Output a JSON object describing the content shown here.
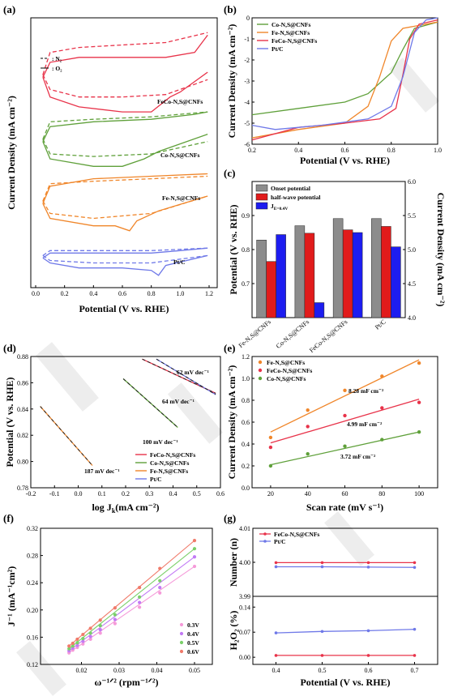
{
  "panels": {
    "a": "(a)",
    "b": "(b)",
    "c": "(c)",
    "d": "(d)",
    "e": "(e)",
    "f": "(f)",
    "g": "(g)"
  },
  "chart_data": [
    {
      "id": "a",
      "type": "line",
      "title": "",
      "xlabel": "Potential (V vs. RHE)",
      "ylabel": "Current Density (mA cm⁻²)",
      "xlim": [
        0,
        1.2
      ],
      "xticks": [
        "0.0",
        "0.2",
        "0.4",
        "0.6",
        "0.8",
        "1.0",
        "1.2"
      ],
      "legend": [
        {
          "style": "dashed",
          "label": ": N₂"
        },
        {
          "style": "solid",
          "label": ": O₂"
        }
      ],
      "curve_labels": [
        "FeCo-N,S@CNFs",
        "Co-N,S@CNFs",
        "Fe-N,S@CNFs",
        "Pt/C"
      ],
      "colors": [
        "#e8334a",
        "#5fa03a",
        "#f0862a",
        "#6f79e8"
      ],
      "note": "Cyclic voltammograms, y axis without tick values",
      "cvs": [
        {
          "name": "FeCo-N,S@CNFs",
          "upper_solid": [
            [
              0.05,
              0.78
            ],
            [
              0.1,
              0.84
            ],
            [
              0.3,
              0.86
            ],
            [
              0.6,
              0.86
            ],
            [
              0.9,
              0.86
            ],
            [
              1.1,
              0.88
            ],
            [
              1.19,
              0.95
            ]
          ],
          "lower_solid": [
            [
              0.05,
              0.78
            ],
            [
              0.1,
              0.7
            ],
            [
              0.3,
              0.66
            ],
            [
              0.6,
              0.64
            ],
            [
              0.8,
              0.64
            ],
            [
              0.93,
              0.7
            ],
            [
              1.0,
              0.72
            ],
            [
              1.19,
              0.8
            ]
          ],
          "upper_dash": [
            [
              0.05,
              0.79
            ],
            [
              0.1,
              0.88
            ],
            [
              0.3,
              0.9
            ],
            [
              0.6,
              0.91
            ],
            [
              0.9,
              0.92
            ],
            [
              1.19,
              0.96
            ]
          ],
          "lower_dash": [
            [
              0.05,
              0.79
            ],
            [
              0.1,
              0.73
            ],
            [
              0.3,
              0.7
            ],
            [
              0.6,
              0.7
            ],
            [
              0.9,
              0.71
            ],
            [
              1.19,
              0.77
            ]
          ]
        },
        {
          "name": "Co-N,S@CNFs",
          "upper_solid": [
            [
              0.05,
              0.52
            ],
            [
              0.1,
              0.58
            ],
            [
              0.4,
              0.6
            ],
            [
              0.8,
              0.61
            ],
            [
              1.1,
              0.63
            ],
            [
              1.19,
              0.64
            ]
          ],
          "lower_solid": [
            [
              0.05,
              0.52
            ],
            [
              0.1,
              0.45
            ],
            [
              0.4,
              0.42
            ],
            [
              0.6,
              0.42
            ],
            [
              0.75,
              0.45
            ],
            [
              0.85,
              0.48
            ],
            [
              1.19,
              0.55
            ]
          ],
          "upper_dash": [
            [
              0.05,
              0.53
            ],
            [
              0.1,
              0.6
            ],
            [
              0.4,
              0.61
            ],
            [
              0.8,
              0.62
            ],
            [
              1.19,
              0.64
            ]
          ],
          "lower_dash": [
            [
              0.05,
              0.53
            ],
            [
              0.1,
              0.47
            ],
            [
              0.4,
              0.46
            ],
            [
              0.8,
              0.47
            ],
            [
              1.19,
              0.52
            ]
          ]
        },
        {
          "name": "Fe-N,S@CNFs",
          "upper_solid": [
            [
              0.05,
              0.27
            ],
            [
              0.1,
              0.34
            ],
            [
              0.4,
              0.37
            ],
            [
              0.8,
              0.38
            ],
            [
              1.19,
              0.39
            ]
          ],
          "lower_solid": [
            [
              0.05,
              0.27
            ],
            [
              0.1,
              0.21
            ],
            [
              0.4,
              0.18
            ],
            [
              0.55,
              0.18
            ],
            [
              0.65,
              0.16
            ],
            [
              0.7,
              0.2
            ],
            [
              0.85,
              0.24
            ],
            [
              1.19,
              0.3
            ]
          ],
          "upper_dash": [
            [
              0.05,
              0.28
            ],
            [
              0.1,
              0.35
            ],
            [
              0.4,
              0.36
            ],
            [
              0.8,
              0.37
            ],
            [
              1.19,
              0.38
            ]
          ],
          "lower_dash": [
            [
              0.05,
              0.28
            ],
            [
              0.1,
              0.23
            ],
            [
              0.4,
              0.21
            ],
            [
              0.8,
              0.23
            ],
            [
              1.19,
              0.3
            ]
          ]
        },
        {
          "name": "Pt/C",
          "upper_solid": [
            [
              0.05,
              0.05
            ],
            [
              0.1,
              0.07
            ],
            [
              0.4,
              0.07
            ],
            [
              0.8,
              0.07
            ],
            [
              1.0,
              0.08
            ],
            [
              1.19,
              0.09
            ]
          ],
          "lower_solid": [
            [
              0.05,
              0.05
            ],
            [
              0.1,
              0.03
            ],
            [
              0.3,
              0.01
            ],
            [
              0.6,
              0.01
            ],
            [
              0.8,
              0.0
            ],
            [
              0.85,
              -0.02
            ],
            [
              0.9,
              0.02
            ],
            [
              1.19,
              0.06
            ]
          ],
          "upper_dash": [
            [
              0.05,
              0.06
            ],
            [
              0.1,
              0.08
            ],
            [
              0.4,
              0.08
            ],
            [
              0.8,
              0.08
            ],
            [
              1.19,
              0.09
            ]
          ],
          "lower_dash": [
            [
              0.05,
              0.06
            ],
            [
              0.1,
              0.04
            ],
            [
              0.4,
              0.03
            ],
            [
              0.8,
              0.03
            ],
            [
              1.19,
              0.06
            ]
          ]
        }
      ]
    },
    {
      "id": "b",
      "type": "line",
      "xlabel": "Potential (V vs. RHE)",
      "ylabel": "Current Density (mA cm⁻²)",
      "xlim": [
        0.2,
        1.0
      ],
      "ylim": [
        -6,
        0
      ],
      "xticks": [
        "0.2",
        "0.4",
        "0.6",
        "0.8",
        "1.0"
      ],
      "yticks": [
        "0",
        "-1",
        "-2",
        "-3",
        "-4",
        "-5",
        "-6"
      ],
      "series": [
        {
          "name": "Co-N,S@CNFs",
          "color": "#5fa03a",
          "points": [
            [
              0.2,
              -4.6
            ],
            [
              0.4,
              -4.3
            ],
            [
              0.6,
              -4.0
            ],
            [
              0.7,
              -3.6
            ],
            [
              0.8,
              -2.6
            ],
            [
              0.85,
              -1.5
            ],
            [
              0.9,
              -0.5
            ],
            [
              1.0,
              -0.2
            ]
          ]
        },
        {
          "name": "Fe-N,S@CNFs",
          "color": "#f0862a",
          "points": [
            [
              0.2,
              -5.7
            ],
            [
              0.4,
              -5.3
            ],
            [
              0.6,
              -5.0
            ],
            [
              0.7,
              -4.2
            ],
            [
              0.75,
              -2.8
            ],
            [
              0.8,
              -1.1
            ],
            [
              0.85,
              -0.5
            ],
            [
              1.0,
              -0.2
            ]
          ]
        },
        {
          "name": "FeCo-N,S@CNFs",
          "color": "#e8334a",
          "points": [
            [
              0.2,
              -5.8
            ],
            [
              0.4,
              -5.2
            ],
            [
              0.6,
              -5.0
            ],
            [
              0.75,
              -4.8
            ],
            [
              0.82,
              -4.3
            ],
            [
              0.85,
              -2.7
            ],
            [
              0.88,
              -1.0
            ],
            [
              0.92,
              -0.3
            ],
            [
              1.0,
              -0.1
            ]
          ]
        },
        {
          "name": "Pt/C",
          "color": "#6f79e8",
          "points": [
            [
              0.2,
              -5.1
            ],
            [
              0.3,
              -5.3
            ],
            [
              0.5,
              -5.1
            ],
            [
              0.7,
              -4.8
            ],
            [
              0.8,
              -4.2
            ],
            [
              0.85,
              -2.8
            ],
            [
              0.9,
              -0.7
            ],
            [
              0.95,
              -0.1
            ],
            [
              1.0,
              0.0
            ]
          ]
        }
      ]
    },
    {
      "id": "c",
      "type": "bar",
      "ylabel": "Potential (V vs. RHE)",
      "y2label": "Current Density (mA cm⁻²)",
      "ylim": [
        0.6,
        1.0
      ],
      "y2lim": [
        4.0,
        6.0
      ],
      "yticks": [
        "0.7",
        "0.8",
        "0.9"
      ],
      "y2ticks": [
        "4.0",
        "4.5",
        "5.0",
        "5.5",
        "6.0"
      ],
      "categories": [
        "Fe-N,S@CNFs",
        "Co-N,S@CNFs",
        "FeCo-N,S@CNFs",
        "Pt/C"
      ],
      "series": [
        {
          "name": "Onset potential",
          "color": "#8c8c8c",
          "axis": "left",
          "values": [
            0.828,
            0.87,
            0.891,
            0.891
          ]
        },
        {
          "name": "half-wave potential",
          "color": "#e11b1b",
          "axis": "left",
          "values": [
            0.765,
            0.848,
            0.858,
            0.868
          ]
        },
        {
          "name": "J",
          "sub": "E=0.4V",
          "color": "#1d1df0",
          "axis": "right",
          "values": [
            5.22,
            4.22,
            5.25,
            5.04
          ]
        }
      ]
    },
    {
      "id": "d",
      "type": "line",
      "xlabel": "log J",
      "xlabel_sub": "k",
      "xlabel_rest": "(mA cm⁻²)",
      "ylabel": "Potential (V vs. RHE)",
      "xlim": [
        -0.2,
        0.6
      ],
      "ylim": [
        0.78,
        0.88
      ],
      "xticks": [
        "-0.2",
        "-0.1",
        "0.0",
        "0.1",
        "0.2",
        "0.3",
        "0.4",
        "0.5",
        "0.6"
      ],
      "yticks": [
        "0.78",
        "0.80",
        "0.82",
        "0.84",
        "0.86",
        "0.88"
      ],
      "annotations": [
        "62 mV dec⁻¹",
        "64 mV dec⁻¹",
        "100 mV dec⁻¹",
        "187 mV dec⁻¹"
      ],
      "series": [
        {
          "name": "FeCo-N,S@CNFs",
          "color": "#e8334a",
          "points": [
            [
              0.27,
              0.878
            ],
            [
              0.58,
              0.852
            ]
          ]
        },
        {
          "name": "Co-N,S@CNFs",
          "color": "#5fa03a",
          "points": [
            [
              0.19,
              0.863
            ],
            [
              0.42,
              0.826
            ]
          ]
        },
        {
          "name": "Fe-N,S@CNFs",
          "color": "#f0862a",
          "points": [
            [
              -0.16,
              0.842
            ],
            [
              0.06,
              0.797
            ]
          ]
        },
        {
          "name": "Pt/C",
          "color": "#6f79e8",
          "points": [
            [
              0.33,
              0.878
            ],
            [
              0.58,
              0.851
            ]
          ]
        }
      ]
    },
    {
      "id": "e",
      "type": "scatter",
      "xlabel": "Scan rate (mV s⁻¹)",
      "ylabel": "Current Density (mA cm⁻²)",
      "xlim": [
        10,
        110
      ],
      "ylim": [
        0,
        1.2
      ],
      "xticks": [
        "20",
        "40",
        "60",
        "80",
        "100"
      ],
      "yticks": [
        "0.0",
        "0.2",
        "0.4",
        "0.6",
        "0.8",
        "1.0",
        "1.2"
      ],
      "annotations": [
        "8.28 mF cm⁻²",
        "4.99 mF cm⁻²",
        "3.72 mF cm⁻²"
      ],
      "x": [
        20,
        40,
        60,
        80,
        100
      ],
      "series": [
        {
          "name": "Fe-N,S@CNFs",
          "color": "#f0862a",
          "values": [
            0.46,
            0.71,
            0.89,
            1.02,
            1.14
          ],
          "fit": [
            0.51,
            1.17
          ]
        },
        {
          "name": "FeCo-N,S@CNFs",
          "color": "#e8334a",
          "values": [
            0.37,
            0.56,
            0.66,
            0.73,
            0.78
          ],
          "fit": [
            0.41,
            0.81
          ]
        },
        {
          "name": "Co-N,S@CNFs",
          "color": "#5fa03a",
          "values": [
            0.2,
            0.31,
            0.38,
            0.44,
            0.51
          ],
          "fit": [
            0.21,
            0.51
          ]
        }
      ]
    },
    {
      "id": "f",
      "type": "scatter",
      "xlabel": "ω⁻¹ᐟ² (rpm⁻¹ᐟ²)",
      "ylabel": "J⁻¹ (mA⁻¹cm²)",
      "xlim": [
        0.01,
        0.05
      ],
      "ylim": [
        0.12,
        0.32
      ],
      "xticks": [
        "0.02",
        "0.03",
        "0.04",
        "0.05"
      ],
      "yticks": [
        "0.12",
        "0.16",
        "0.20",
        "0.24",
        "0.28",
        "0.32"
      ],
      "x": [
        0.0167,
        0.0177,
        0.0189,
        0.0204,
        0.0224,
        0.025,
        0.0289,
        0.0354,
        0.0408,
        0.05
      ],
      "series": [
        {
          "name": "0.3V",
          "color": "#f59ad9",
          "values": [
            0.137,
            0.141,
            0.145,
            0.15,
            0.157,
            0.166,
            0.18,
            0.204,
            0.225,
            0.264
          ]
        },
        {
          "name": "0.4V",
          "color": "#c27af5",
          "values": [
            0.14,
            0.144,
            0.148,
            0.154,
            0.161,
            0.171,
            0.186,
            0.211,
            0.233,
            0.278
          ]
        },
        {
          "name": "0.5V",
          "color": "#7bd06a",
          "values": [
            0.143,
            0.147,
            0.152,
            0.158,
            0.166,
            0.177,
            0.193,
            0.219,
            0.243,
            0.29
          ]
        },
        {
          "name": "0.6V",
          "color": "#f07a6a",
          "values": [
            0.147,
            0.151,
            0.157,
            0.164,
            0.173,
            0.185,
            0.203,
            0.233,
            0.261,
            0.302
          ]
        }
      ]
    },
    {
      "id": "g",
      "type": "line",
      "xlabel": "Potential (V vs. RHE)",
      "ylabel_top": "Number (n)",
      "ylabel_bottom": "H₂O₂ (%)",
      "xlim": [
        0.35,
        0.75
      ],
      "xticks": [
        "0.4",
        "0.5",
        "0.6",
        "0.7"
      ],
      "top": {
        "ylim": [
          3.99,
          4.01
        ],
        "yticks": [
          "3.99",
          "4.00",
          "4.01"
        ]
      },
      "bottom": {
        "ylim": [
          -0.02,
          0.17
        ],
        "yticks": [
          "0.00",
          "0.07",
          "0.14"
        ]
      },
      "x": [
        0.4,
        0.5,
        0.6,
        0.7
      ],
      "series": [
        {
          "name": "FeCo-N,S@CNFs",
          "color": "#e8334a",
          "n": [
            3.9999,
            3.9999,
            3.9999,
            3.9999
          ],
          "h2o2": [
            0.005,
            0.005,
            0.005,
            0.005
          ]
        },
        {
          "name": "Pt/C",
          "color": "#6f79e8",
          "n": [
            3.9987,
            3.9987,
            3.9986,
            3.9985
          ],
          "h2o2": [
            0.068,
            0.072,
            0.074,
            0.078
          ]
        }
      ]
    }
  ]
}
